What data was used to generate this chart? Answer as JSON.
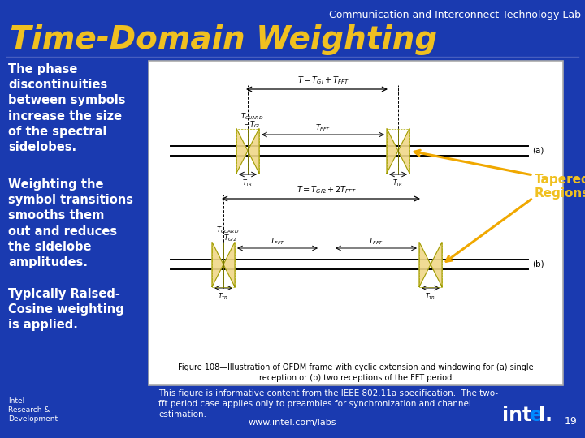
{
  "background_color": "#1a3ab0",
  "header_text": "Communication and Interconnect Technology Lab",
  "header_color": "#ffffff",
  "header_fontsize": 9,
  "title_text": "Time-Domain Weighting",
  "title_color": "#f0c020",
  "title_fontsize": 28,
  "bullet_color": "#ffffff",
  "bullet_fontsize": 10.5,
  "bullets": [
    "The phase\ndiscontinuities\nbetween symbols\nincrease the size\nof the spectral\nsidelobes.",
    "Weighting the\nsymbol transitions\nsmooths them\nout and reduces\nthe sidelobe\namplitudes.",
    "Typically Raised-\nCosine weighting\nis applied."
  ],
  "tapered_label": "Tapered\nRegions",
  "tapered_color": "#f0c020",
  "figure_box_color": "#ffffff",
  "caption_text": "Figure 108—Illustration of OFDM frame with cyclic extension and windowing for (a) single\nreception or (b) two receptions of the FFT period",
  "caption_color": "#000000",
  "caption_fontsize": 7,
  "footer_note": "This figure is informative content from the IEEE 802.11a specification.  The two-\nfft period case applies only to preambles for synchronization and channel\nestimation.",
  "footer_note_color": "#ffffff",
  "footer_note_fontsize": 7.5,
  "page_number": "19",
  "page_number_color": "#ffffff",
  "page_number_fontsize": 9,
  "www_text": "www.intel.com/labs",
  "www_color": "#ffffff",
  "www_fontsize": 8,
  "intel_rd_text": "Intel\nResearch &\nDevelopment",
  "intel_rd_fontsize": 6.5,
  "intel_rd_color": "#ffffff",
  "diagram_line_color": "#000000",
  "diagram_tapered_fill": "#f0d888",
  "diagram_arrow_color": "#f0a800"
}
